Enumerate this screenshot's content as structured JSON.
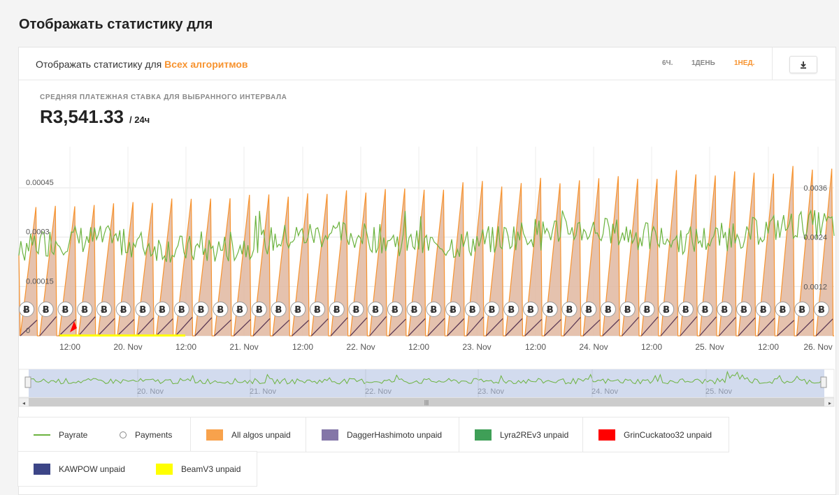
{
  "page": {
    "title": "Отображать статистику для"
  },
  "header": {
    "text": "Отображать статистику для",
    "accent": "Всех алгоритмов",
    "tabs": [
      {
        "label": "6Ч.",
        "active": false
      },
      {
        "label": "1ДЕНЬ",
        "active": false
      },
      {
        "label": "1НЕД.",
        "active": true
      }
    ],
    "download_icon": "download-icon"
  },
  "stat": {
    "label": "СРЕДНЯЯ ПЛАТЕЖНАЯ СТАВКА ДЛЯ ВЫБРАННОГО ИНТЕРВАЛА",
    "value": "R3,541.33",
    "unit": "/ 24ч"
  },
  "colors": {
    "accent": "#f7932f",
    "payrate": "#6cb33f",
    "unpaid_fill": "#e0b7a0",
    "unpaid_line": "#f7932f",
    "navigator_bg": "#d2dbee"
  },
  "chart_data": {
    "type": "line",
    "left_axis": {
      "ticks": [
        "0",
        "0.00015",
        "0.0003",
        "0.00045"
      ],
      "range": [
        0,
        0.00045
      ]
    },
    "right_axis": {
      "ticks": [
        "0.0012",
        "0.0024",
        "0.0036"
      ],
      "range": [
        0,
        0.0036
      ]
    },
    "x_ticks": [
      "12:00",
      "20. Nov",
      "12:00",
      "21. Nov",
      "12:00",
      "22. Nov",
      "12:00",
      "23. Nov",
      "12:00",
      "24. Nov",
      "12:00",
      "25. Nov",
      "12:00",
      "26. Nov"
    ],
    "navigator_ticks": [
      "20. Nov",
      "21. Nov",
      "22. Nov",
      "23. Nov",
      "24. Nov",
      "25. Nov"
    ],
    "payment_marker": "Ƀ",
    "payments_count": 42,
    "series": [
      {
        "name": "Payrate",
        "type": "line",
        "axis": "left",
        "approx_range": [
          0.00018,
          0.00044
        ],
        "mean": 0.0003
      },
      {
        "name": "All algos unpaid",
        "type": "area",
        "axis": "right",
        "pattern": "sawtooth",
        "cycles": 42,
        "peak_range": [
          0.0028,
          0.0042
        ]
      }
    ],
    "grid": true
  },
  "legend": [
    {
      "label": "Payrate",
      "kind": "line",
      "color": "#6cb33f"
    },
    {
      "label": "Payments",
      "kind": "circle",
      "color": "#888888"
    },
    {
      "label": "All algos unpaid",
      "kind": "box",
      "color": "#f8a24c"
    },
    {
      "label": "DaggerHashimoto unpaid",
      "kind": "box",
      "color": "#8476a8"
    },
    {
      "label": "Lyra2REv3 unpaid",
      "kind": "box",
      "color": "#3f9f57"
    },
    {
      "label": "GrinCuckatoo32 unpaid",
      "kind": "box",
      "color": "#ff0000"
    },
    {
      "label": "KAWPOW unpaid",
      "kind": "box",
      "color": "#3c4587"
    },
    {
      "label": "BeamV3 unpaid",
      "kind": "box",
      "color": "#ffff00"
    }
  ]
}
